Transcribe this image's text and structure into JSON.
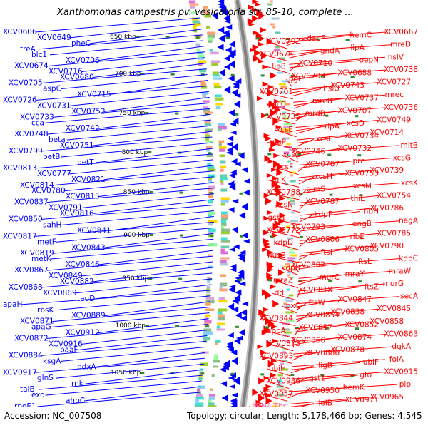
{
  "title": "Xanthomonas campestris pv. vesicatoria str. 85-10, complete ...",
  "footer": {
    "accession": "Accession: NC_007508",
    "info": "Topology: circular; Length: 5,178,466 bp; Genes: 4,545"
  },
  "ticks": [
    "650 kbp",
    "700 kbp",
    "750 kbp",
    "800 kbp",
    "850 kbp",
    "900 kbp",
    "950 kbp",
    "1000 kbp",
    "1050 kbp"
  ],
  "genes_forward": [
    "XCV0667",
    "hemC",
    "dapF",
    "XCV0702",
    "mreD",
    "lipA",
    "gndA",
    "XCV0676",
    "hslV",
    "pepN",
    "XCV0710",
    "lipB",
    "XCV0738",
    "XCV0688",
    "XCV0703",
    "pgl",
    "XCV0727",
    "XCV0743",
    "hslU",
    "XCV0701",
    "mrec",
    "XCV0737",
    "mreB",
    "dacC",
    "XCV0736",
    "XCV0707",
    "mrdB",
    "XCV0735",
    "XCV0749",
    "xcsD",
    "rlpA",
    "xcsE",
    "XCV0714",
    "XCV0734",
    "xcsL",
    "gluP",
    "mltB",
    "XCV0732",
    "XCV0746",
    "xcsC",
    "xcsG",
    "prc",
    "XCV0767",
    "xcsF",
    "XCV0739",
    "XCV0753",
    "xcsH",
    "folK",
    "xcsK",
    "xcsM",
    "glmS",
    "XCV0788",
    "XCV0754",
    "thiL",
    "XCV0787",
    "xcsN",
    "XCV0786",
    "ribH",
    "kdpF",
    "gsh1",
    "nagA",
    "engB",
    "XCV0793",
    "XCV0772",
    "XCV0785",
    "ribE",
    "XCV0806",
    "kdpD",
    "XCV0790",
    "XCV0805",
    "ftsI",
    "nusB",
    "kdpC",
    "ftsL",
    "XCV0802",
    "kdpB",
    "mraW",
    "mraY",
    "murC",
    "mraZ",
    "murG",
    "ftsZ",
    "XCV0818",
    "ddl",
    "secA",
    "XCV0847",
    "ftsW",
    "lpxC",
    "XCV0845",
    "XCV0838",
    "XCV0854",
    "XCV0844",
    "XCV0858",
    "XCV0852",
    "XCV0857",
    "appA",
    "XCV0863",
    "XCV0874",
    "XCV0866",
    "XCV0873",
    "dgkA",
    "XCV0878",
    "XCV0886",
    "XCV0893",
    "folA",
    "ubiF",
    "ligB",
    "ubiH",
    "XCV0915",
    "gfo",
    "gst1",
    "XCV0936",
    "pip",
    "hemK",
    "XCV0950",
    "XCV0957",
    "XCV0965",
    "XCV0971",
    "lolB",
    "tRNA-Thr"
  ],
  "genes_reverse": [
    "XCV0606",
    "XCV0649",
    "pheC",
    "treA",
    "blc1",
    "XCV0706",
    "XCV0674",
    "XCV0716",
    "XCV0680",
    "XCV0705",
    "aspC",
    "XCV0715",
    "XCV0726",
    "XCV0731",
    "XCV0752",
    "XCV0733",
    "cca",
    "XCV0742",
    "XCV0748",
    "beta",
    "XCV0751",
    "XCV0799",
    "betB",
    "betT",
    "XCV0813",
    "XCV0777",
    "XCV0821",
    "XCV0814",
    "XCV0780",
    "XCV0815",
    "XCV0837",
    "XCV0791",
    "XCV0816",
    "XCV0850",
    "sahH",
    "XCV0841",
    "XCV0817",
    "metF",
    "XCV0843",
    "XCV0819",
    "metK",
    "XCV0846",
    "XCV0867",
    "XCV0849",
    "XCV0882",
    "XCV0868",
    "XCV0869",
    "tauD",
    "apaH",
    "rbsK",
    "XCV0889",
    "XCV0871",
    "apaG",
    "XCV0912",
    "XCV0872",
    "XCV0916",
    "paaF",
    "XCV0884",
    "ksgA",
    "pdxA",
    "XCV0917",
    "glnS",
    "rnk",
    "talB",
    "exo",
    "ahpC",
    "rpoE1"
  ],
  "colors": {
    "forward": "#ff0000",
    "reverse": "#0000ff",
    "rna": "#ff69b4",
    "tick": "#2e8b2e",
    "backbone": "#808080"
  }
}
